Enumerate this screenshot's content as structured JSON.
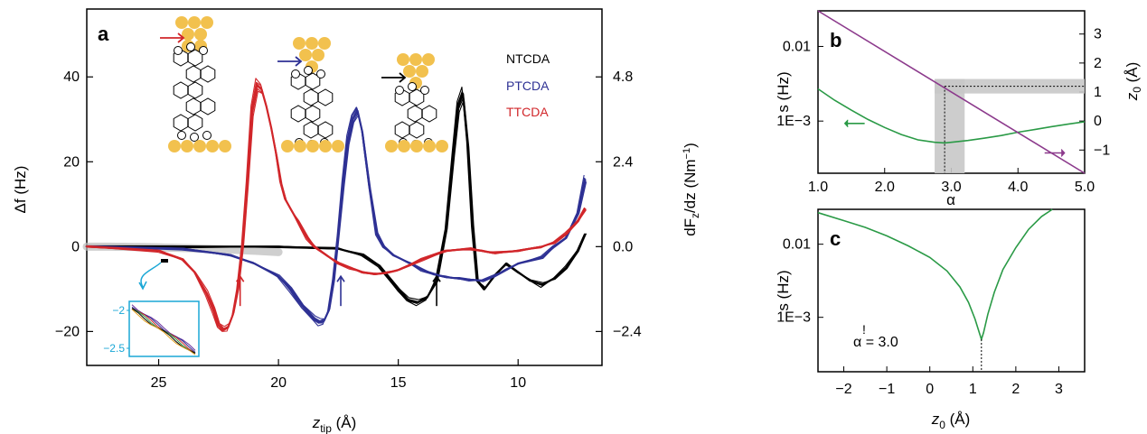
{
  "chart_data": [
    {
      "panel": "a",
      "type": "line",
      "xlabel": "z_tip (Å)",
      "ylabel": "Δf (Hz)",
      "y2label": "dF_z/dz (Nm⁻¹)",
      "xlim": [
        28,
        6.5
      ],
      "ylim": [
        -28,
        56
      ],
      "xticks": [
        25,
        20,
        15,
        10
      ],
      "yticks": [
        -20,
        0,
        20,
        40
      ],
      "y2ticks": [
        {
          "at": 40,
          "label": "4.8"
        },
        {
          "at": 20,
          "label": "2.4"
        },
        {
          "at": 0,
          "label": "0.0"
        },
        {
          "at": -20,
          "label": "−2.4"
        }
      ],
      "legend": [
        "NTCDA",
        "PTCDA",
        "TTCDA"
      ],
      "legend_position": "top-right",
      "series": [
        {
          "name": "NTCDA",
          "color": "#000000",
          "x": [
            28,
            24,
            20,
            17.5,
            16.5,
            15.8,
            15,
            14.6,
            14.2,
            13.8,
            13.4,
            13,
            12.7,
            12.5,
            12.3,
            12.1,
            11.9,
            11.7,
            11.4,
            11,
            10.5,
            10,
            9.5,
            9,
            8.5,
            8,
            7.5,
            7.2
          ],
          "y": [
            0,
            0,
            0,
            -0.5,
            -2,
            -4.5,
            -10,
            -12.5,
            -13.2,
            -12,
            -8,
            4,
            22,
            33,
            36,
            24,
            5,
            -8,
            -10,
            -7,
            -4,
            -6,
            -8,
            -9,
            -7.5,
            -5,
            -1,
            3
          ]
        },
        {
          "name": "PTCDA",
          "color": "#2e3194",
          "x": [
            28,
            24,
            22,
            21,
            20,
            19.5,
            19,
            18.5,
            18.3,
            18.1,
            17.9,
            17.7,
            17.5,
            17.3,
            17.1,
            16.9,
            16.7,
            16.5,
            16.2,
            15.9,
            15.6,
            15.2,
            14.5,
            14,
            13.5,
            13,
            12.5,
            12,
            11.5,
            11,
            10.5,
            10,
            9,
            8.5,
            8,
            7.5,
            7.2
          ],
          "y": [
            0,
            -0.5,
            -2,
            -4,
            -7,
            -10,
            -14,
            -17,
            -17.8,
            -17.5,
            -15,
            -8,
            3,
            15,
            25,
            30,
            32,
            27,
            14,
            3,
            0,
            -2,
            -4,
            -5.5,
            -6.5,
            -7.2,
            -7.5,
            -7.8,
            -8,
            -7,
            -5.5,
            -4,
            -2.5,
            0,
            2,
            8,
            16
          ]
        },
        {
          "name": "TTCDA",
          "color": "#d1262a",
          "x": [
            28,
            25,
            24,
            23.5,
            23,
            22.7,
            22.5,
            22.3,
            22.1,
            21.9,
            21.7,
            21.5,
            21.3,
            21.1,
            20.9,
            20.7,
            20.5,
            20.3,
            20.1,
            19.9,
            19.7,
            19.5,
            19.2,
            18.8,
            18.5,
            18,
            17.5,
            17,
            16.5,
            16,
            15.5,
            15,
            14,
            13,
            12,
            11.5,
            11,
            10,
            9,
            8.5,
            8,
            7.5,
            7.2
          ],
          "y": [
            0,
            -1,
            -3,
            -6,
            -11,
            -15,
            -18.5,
            -19.5,
            -19,
            -16,
            -10,
            0,
            15,
            32,
            38,
            37,
            33,
            28,
            22,
            15,
            11,
            9,
            6,
            2,
            0,
            -2,
            -4,
            -5,
            -6,
            -6.5,
            -6.2,
            -5.5,
            -3,
            -1,
            -0.5,
            -1,
            -1.5,
            -1,
            0,
            1,
            3,
            6,
            9
          ]
        }
      ],
      "onset_arrows_x": [
        21.6,
        17.4,
        13.4
      ],
      "inset": {
        "xlim": [
          24.8,
          24.4
        ],
        "yticks": [
          "−2",
          "−2.5"
        ]
      }
    },
    {
      "panel": "b",
      "type": "line",
      "xlabel": "α",
      "ylabel": "s (Hz)",
      "y2label": "z0 (Å)",
      "xlim": [
        1.0,
        5.0
      ],
      "xticks": [
        "1.0",
        "2.0",
        "3.0",
        "4.0",
        "5.0"
      ],
      "yscale": "log",
      "ylim": [
        0.0002,
        0.03
      ],
      "yticks": [
        "1E−3",
        "0.01"
      ],
      "y2lim": [
        -1.8,
        3.8
      ],
      "y2ticks": [
        "−1",
        "0",
        "1",
        "2",
        "3"
      ],
      "series": [
        {
          "name": "s",
          "color": "#2a9a46",
          "axis": "left",
          "x": [
            1.0,
            1.25,
            1.5,
            1.75,
            2.0,
            2.25,
            2.5,
            2.75,
            2.9,
            3.0,
            3.25,
            3.5,
            3.75,
            4.0,
            4.25,
            4.5,
            4.75,
            5.0
          ],
          "y": [
            0.0027,
            0.0019,
            0.0014,
            0.00105,
            0.00082,
            0.00066,
            0.00056,
            0.00052,
            0.00051,
            0.00052,
            0.00055,
            0.00059,
            0.00064,
            0.00071,
            0.00077,
            0.00084,
            0.00091,
            0.00098
          ]
        },
        {
          "name": "z0",
          "color": "#8c3a8c",
          "axis": "right",
          "x": [
            1.0,
            5.0
          ],
          "y": [
            3.8,
            -1.8
          ]
        }
      ],
      "optimum": {
        "alpha": 2.9,
        "z0": 1.2
      }
    },
    {
      "panel": "c",
      "type": "line",
      "xlabel": "z0 (Å)",
      "ylabel": "s (Hz)",
      "xlim": [
        -2.6,
        3.6
      ],
      "xticks": [
        "−2",
        "−1",
        "0",
        "1",
        "2",
        "3"
      ],
      "yscale": "log",
      "ylim": [
        0.00018,
        0.03
      ],
      "yticks": [
        "1E−3",
        "0.01"
      ],
      "annotation": "α = 3.0",
      "annotation_mark": "!",
      "series": [
        {
          "name": "s",
          "color": "#2a9a46",
          "x": [
            -2.6,
            -2.0,
            -1.5,
            -1.0,
            -0.5,
            0.0,
            0.4,
            0.7,
            0.9,
            1.05,
            1.15,
            1.2,
            1.25,
            1.35,
            1.5,
            1.7,
            2.0,
            2.3,
            2.6,
            2.85
          ],
          "y": [
            0.027,
            0.021,
            0.017,
            0.013,
            0.0095,
            0.0066,
            0.0043,
            0.0026,
            0.0016,
            0.00095,
            0.00062,
            0.0005,
            0.00062,
            0.0011,
            0.0022,
            0.0045,
            0.009,
            0.016,
            0.024,
            0.03
          ]
        }
      ],
      "minimum_marker_x": 1.2
    }
  ],
  "labels": {
    "a": "a",
    "b": "b",
    "c": "c",
    "a_xlabel_main": "z",
    "a_xlabel_sub": "tip",
    "a_xlabel_unit": " (Å)",
    "a_ylabel": "Δf (Hz)",
    "a_y2label_pre": "dF",
    "a_y2label_sub": "z",
    "a_y2label_post": "/dz (Nm",
    "a_y2label_sup": "−1",
    "a_y2label_end": ")",
    "b_xlabel": "α",
    "bc_ylabel": "s (Hz)",
    "b_y2label_main": "z",
    "b_y2label_sub": "0",
    "b_y2label_unit": " (Å)",
    "c_xlabel_main": "z",
    "c_xlabel_sub": "0",
    "c_xlabel_unit": " (Å)",
    "c_annot": "α = 3.0",
    "c_annot_mark": "!"
  },
  "colors": {
    "ntcda": "#000000",
    "ptcda": "#2e3194",
    "ttcda": "#d1262a",
    "s_curve": "#2a9a46",
    "z0_line": "#8c3a8c",
    "gold": "#f2c14e",
    "inset_frame": "#1aa7d6"
  }
}
